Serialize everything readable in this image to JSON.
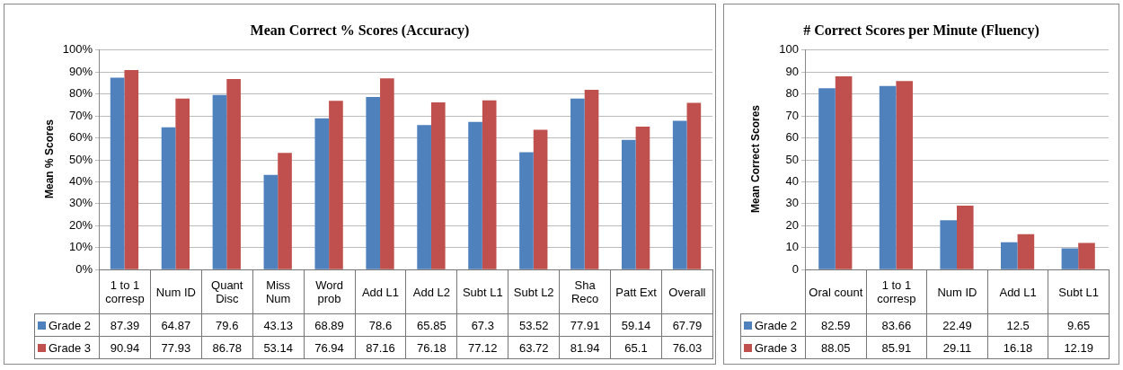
{
  "chart_data": [
    {
      "type": "bar",
      "title": "Mean Correct % Scores (Accuracy)",
      "ylabel": "Mean % Scores",
      "categories": [
        "1 to 1 corresp",
        "Num ID",
        "Quant Disc",
        "Miss Num",
        "Word prob",
        "Add L1",
        "Add L2",
        "Subt L1",
        "Subt L2",
        "Sha Reco",
        "Patt Ext",
        "Overall"
      ],
      "series": [
        {
          "name": "Grade 2",
          "color": "#4f81bd",
          "values": [
            87.39,
            64.87,
            79.6,
            43.13,
            68.89,
            78.6,
            65.85,
            67.3,
            53.52,
            77.91,
            59.14,
            67.79
          ]
        },
        {
          "name": "Grade 3",
          "color": "#c0504d",
          "values": [
            90.94,
            77.93,
            86.78,
            53.14,
            76.94,
            87.16,
            76.18,
            77.12,
            63.72,
            81.94,
            65.1,
            76.03
          ]
        }
      ],
      "ylim": [
        0,
        100
      ],
      "yticks": [
        {
          "value": 0,
          "label": "0%"
        },
        {
          "value": 10,
          "label": "10%"
        },
        {
          "value": 20,
          "label": "20%"
        },
        {
          "value": 30,
          "label": "30%"
        },
        {
          "value": 40,
          "label": "40%"
        },
        {
          "value": 50,
          "label": "50%"
        },
        {
          "value": 60,
          "label": "60%"
        },
        {
          "value": 70,
          "label": "70%"
        },
        {
          "value": 80,
          "label": "80%"
        },
        {
          "value": 90,
          "label": "90%"
        },
        {
          "value": 100,
          "label": "100%"
        }
      ],
      "grid": "y",
      "legend": "bottom",
      "data_labels": true
    },
    {
      "type": "bar",
      "title": "# Correct Scores per Minute (Fluency)",
      "ylabel": "Mean Correct Scores",
      "categories": [
        "Oral count",
        "1 to 1 corresp",
        "Num ID",
        "Add L1",
        "Subt L1"
      ],
      "series": [
        {
          "name": "Grade 2",
          "color": "#4f81bd",
          "values": [
            82.59,
            83.66,
            22.49,
            12.5,
            9.65
          ]
        },
        {
          "name": "Grade 3",
          "color": "#c0504d",
          "values": [
            88.05,
            85.91,
            29.11,
            16.18,
            12.19
          ]
        }
      ],
      "ylim": [
        0,
        100
      ],
      "yticks": [
        0,
        10,
        20,
        30,
        40,
        50,
        60,
        70,
        80,
        90,
        100
      ],
      "grid": "y",
      "legend": "bottom",
      "data_labels": true
    }
  ]
}
